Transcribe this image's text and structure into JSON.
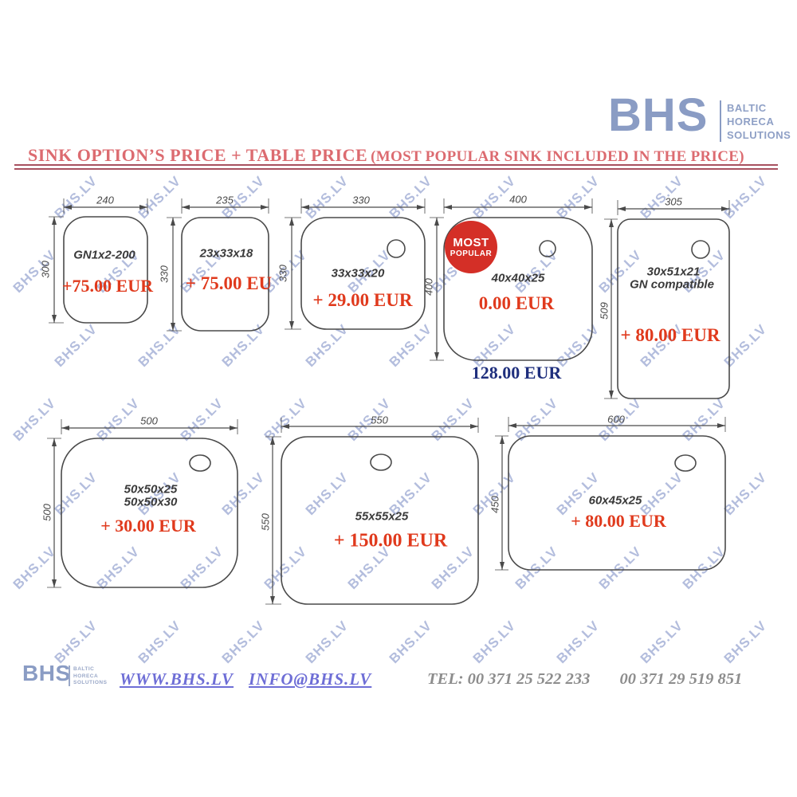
{
  "header": {
    "logo": {
      "text": "BHS",
      "words": [
        "BALTIC",
        "HORECA",
        "SOLUTIONS"
      ]
    },
    "title_main": "SINK OPTION’S PRICE + TABLE PRICE",
    "title_paren": "(MOST POPULAR SINK INCLUDED IN THE PRICE)"
  },
  "watermark": {
    "text": "BHS.LV"
  },
  "badge": {
    "line1": "MOST",
    "line2": "POPULAR"
  },
  "sinks": [
    {
      "width_mm": "240",
      "height_mm": "300",
      "model": "GN1x2-200",
      "price": "+75.00 EUR"
    },
    {
      "width_mm": "235",
      "height_mm": "330",
      "model": "23x33x18",
      "price": "+ 75.00 EU"
    },
    {
      "width_mm": "330",
      "height_mm": "330",
      "model": "33x33x20",
      "price": "+ 29.00 EUR"
    },
    {
      "width_mm": "400",
      "height_mm": "400",
      "model": "40x40x25",
      "price": "0.00 EUR",
      "table_price": "128.00 EUR"
    },
    {
      "width_mm": "305",
      "height_mm": "509",
      "model": "30x51x21",
      "model2": "GN compatible",
      "price": "+ 80.00 EUR"
    },
    {
      "width_mm": "500",
      "height_mm": "500",
      "model": "50x50x25",
      "model2": "50x50x30",
      "price": "+ 30.00 EUR"
    },
    {
      "width_mm": "550",
      "height_mm": "550",
      "model": "55x55x25",
      "price": "+ 150.00 EUR"
    },
    {
      "width_mm": "600",
      "height_mm": "450",
      "model": "60x45x25",
      "price": "+ 80.00 EUR"
    }
  ],
  "footer": {
    "logo": {
      "text": "BHS",
      "words": [
        "BALTIC",
        "HORECA",
        "SOLUTIONS"
      ]
    },
    "website": "WWW.BHS.LV",
    "email": "INFO@BHS.LV",
    "tel_label": "TEL:",
    "phone1": "00 371  25 522 233",
    "phone2": "00 371 29 519 851"
  },
  "colors": {
    "title_red": "#dc6b70",
    "rule_red": "#a85160",
    "price_red": "#e03a1d",
    "table_price_navy": "#1f2f7d",
    "logo_blue": "#8a9cc4",
    "watermark_blue": "#a0acd4",
    "badge_red": "#d42f27",
    "link_purple": "#6e6ed6",
    "phone_gray": "#8d8d8d",
    "drawing_gray": "#4a4a4a"
  }
}
